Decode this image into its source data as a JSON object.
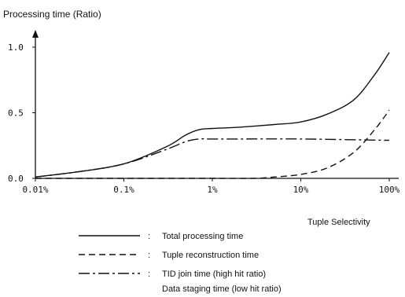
{
  "chart_data": {
    "type": "line",
    "ylabel": "Processing time (Ratio)",
    "xlabel": "Tuple Selectivity",
    "x_scale": "log",
    "xlim": [
      "0.01%",
      "100%"
    ],
    "ylim": [
      0.0,
      1.0
    ],
    "y_ticks": [
      "1.0",
      "0.5",
      "0.0"
    ],
    "x_ticks": [
      "0.01%",
      "0.1%",
      "1%",
      "10%",
      "100%"
    ],
    "grid": false,
    "legend_position": "bottom",
    "series": [
      {
        "name": "Total processing time",
        "style": "solid",
        "x": [
          "0.01%",
          "0.03%",
          "0.1%",
          "0.3%",
          "0.5%",
          "0.7%",
          "1%",
          "2%",
          "5%",
          "10%",
          "20%",
          "40%",
          "70%",
          "100%"
        ],
        "y": [
          0.01,
          0.05,
          0.11,
          0.24,
          0.33,
          0.37,
          0.38,
          0.39,
          0.41,
          0.43,
          0.49,
          0.6,
          0.8,
          0.96
        ]
      },
      {
        "name": "Tuple reconstruction time",
        "style": "dashed",
        "x": [
          "0.01%",
          "1%",
          "3%",
          "5%",
          "10%",
          "20%",
          "40%",
          "70%",
          "100%"
        ],
        "y": [
          0.0,
          0.0,
          0.0,
          0.01,
          0.03,
          0.08,
          0.2,
          0.38,
          0.52
        ]
      },
      {
        "name": "TID join time (high hit ratio)",
        "name_extra": "Data staging time (low hit ratio)",
        "style": "dash-dot",
        "x": [
          "0.01%",
          "0.03%",
          "0.1%",
          "0.3%",
          "0.5%",
          "0.7%",
          "1%",
          "2%",
          "10%",
          "100%"
        ],
        "y": [
          0.01,
          0.05,
          0.11,
          0.22,
          0.28,
          0.3,
          0.3,
          0.3,
          0.3,
          0.29
        ]
      }
    ],
    "legend_prefix": ":"
  }
}
